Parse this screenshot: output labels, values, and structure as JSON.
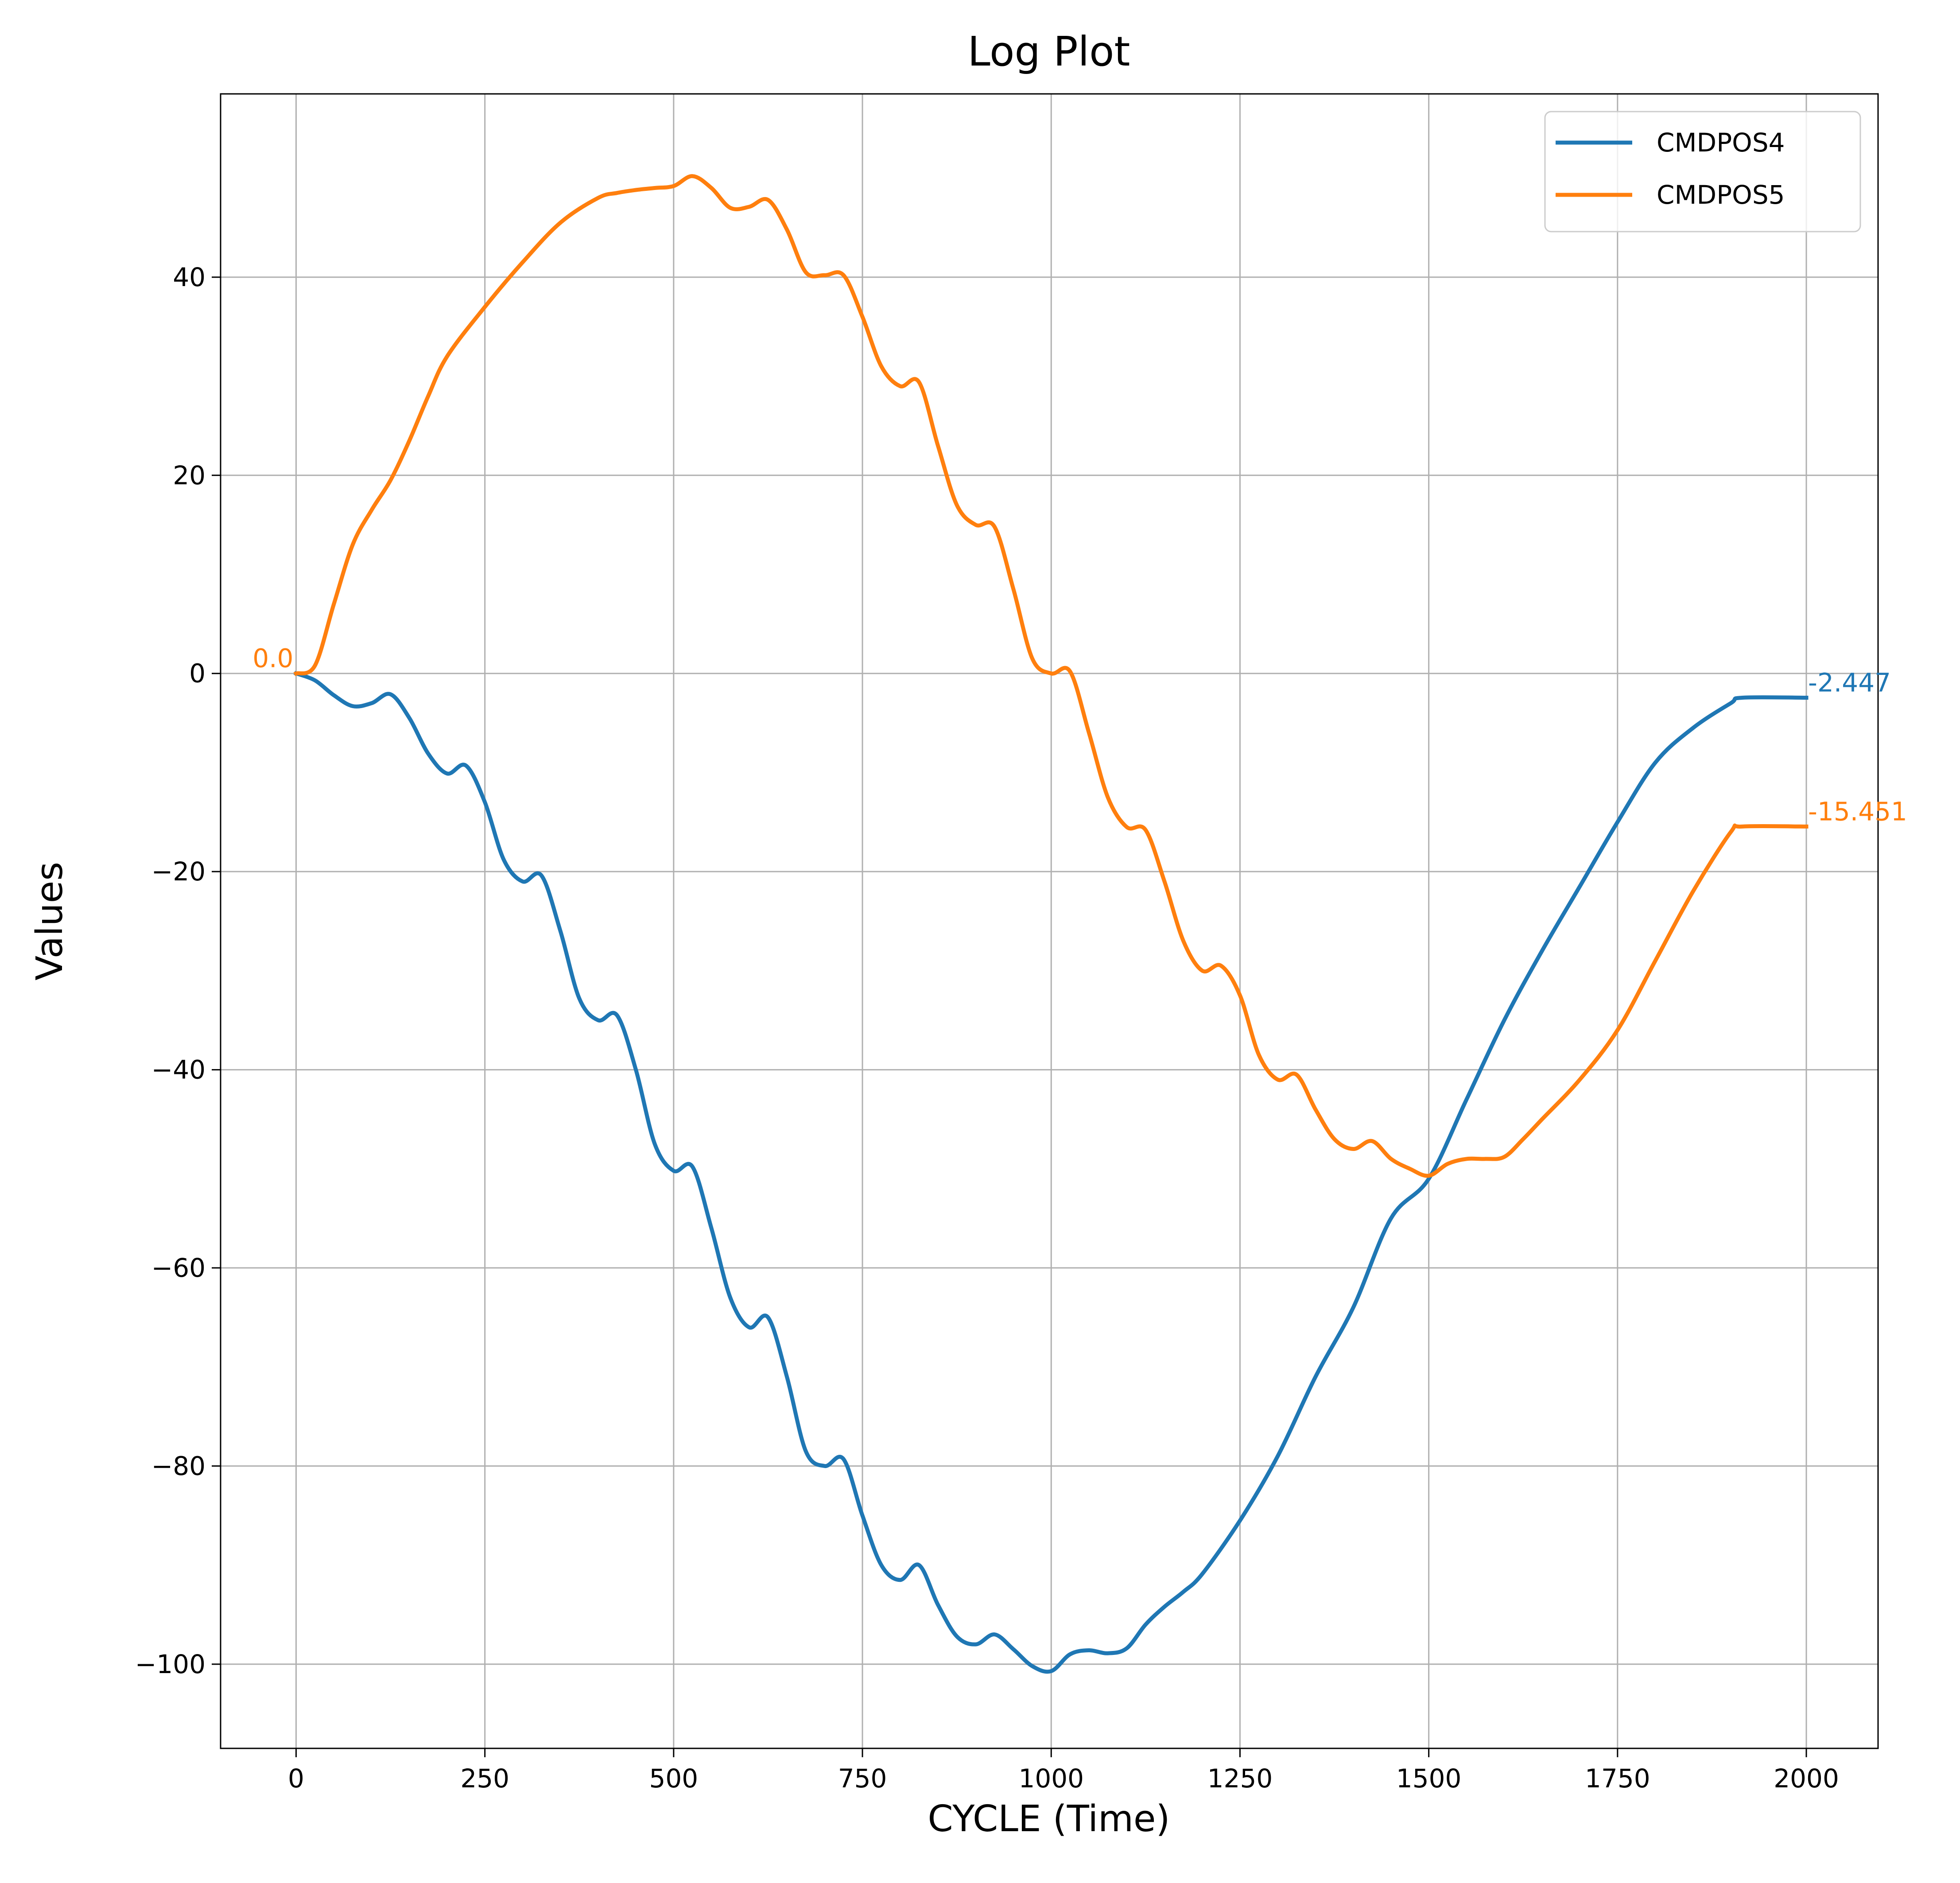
{
  "chart_data": {
    "type": "line",
    "title": "Log Plot",
    "xlabel": "CYCLE (Time)",
    "ylabel": "Values",
    "xlim": [
      -100,
      2095
    ],
    "ylim": [
      -108.5,
      58.5
    ],
    "xticks": [
      0,
      250,
      500,
      750,
      1000,
      1250,
      1500,
      1750,
      2000
    ],
    "yticks": [
      40,
      20,
      0,
      -20,
      -40,
      -60,
      -80,
      -100
    ],
    "xtick_labels": [
      "0",
      "250",
      "500",
      "750",
      "1000",
      "1250",
      "1500",
      "1750",
      "2000"
    ],
    "ytick_labels": [
      "40",
      "20",
      "0",
      "−20",
      "−40",
      "−60",
      "−80",
      "−100"
    ],
    "grid": true,
    "legend_position": "top-right",
    "series": [
      {
        "name": "CMDPOS4",
        "color": "#1f77b4",
        "x": [
          0,
          25,
          50,
          75,
          100,
          125,
          150,
          175,
          200,
          225,
          250,
          275,
          300,
          325,
          350,
          375,
          400,
          425,
          450,
          475,
          500,
          525,
          550,
          575,
          600,
          625,
          650,
          675,
          700,
          725,
          750,
          775,
          800,
          825,
          850,
          875,
          900,
          925,
          950,
          975,
          1000,
          1025,
          1050,
          1075,
          1100,
          1125,
          1150,
          1175,
          1200,
          1250,
          1300,
          1350,
          1400,
          1450,
          1500,
          1550,
          1600,
          1650,
          1700,
          1750,
          1800,
          1850,
          1900,
          1915,
          2000
        ],
        "y": [
          0,
          -0.7,
          -2.2,
          -3.3,
          -3.0,
          -2.1,
          -4.5,
          -8.1,
          -10.1,
          -9.3,
          -13.0,
          -18.8,
          -21.0,
          -20.4,
          -26.0,
          -32.8,
          -35.0,
          -34.5,
          -40.0,
          -47.5,
          -50.2,
          -49.8,
          -56.0,
          -63.0,
          -66.0,
          -65.0,
          -71.0,
          -78.5,
          -80.0,
          -79.3,
          -85.0,
          -90.0,
          -91.5,
          -90.0,
          -94.0,
          -97.2,
          -98.0,
          -97.0,
          -98.5,
          -100.2,
          -100.7,
          -99.0,
          -98.6,
          -98.9,
          -98.4,
          -96.0,
          -94.2,
          -92.7,
          -90.9,
          -85.5,
          -79.0,
          -71.0,
          -64.0,
          -55.0,
          -51.0,
          -43.0,
          -35.0,
          -28.0,
          -21.5,
          -15.0,
          -9.0,
          -5.5,
          -3.0,
          -2.447,
          -2.447
        ]
      },
      {
        "name": "CMDPOS5",
        "color": "#ff7f0e",
        "x": [
          0,
          25,
          50,
          75,
          100,
          125,
          150,
          175,
          200,
          250,
          300,
          350,
          400,
          425,
          450,
          475,
          500,
          525,
          550,
          575,
          600,
          625,
          650,
          675,
          700,
          725,
          750,
          775,
          800,
          825,
          850,
          875,
          900,
          925,
          950,
          975,
          1000,
          1025,
          1050,
          1075,
          1100,
          1125,
          1150,
          1175,
          1200,
          1225,
          1250,
          1275,
          1300,
          1325,
          1350,
          1375,
          1400,
          1425,
          1450,
          1475,
          1500,
          1525,
          1550,
          1575,
          1600,
          1625,
          1650,
          1700,
          1750,
          1800,
          1850,
          1900,
          1915,
          2000
        ],
        "y": [
          0,
          0.8,
          7.0,
          13.0,
          16.5,
          19.5,
          23.5,
          28.0,
          32.0,
          37.0,
          41.5,
          45.5,
          48.0,
          48.5,
          48.8,
          49.0,
          49.2,
          50.2,
          49.0,
          47.0,
          47.1,
          47.8,
          44.8,
          40.5,
          40.2,
          40.2,
          36.0,
          31.0,
          29.0,
          29.4,
          23.0,
          17.0,
          15.0,
          14.8,
          8.5,
          1.5,
          0,
          0.2,
          -6.0,
          -12.5,
          -15.5,
          -15.8,
          -21.0,
          -27.0,
          -30.0,
          -29.5,
          -32.5,
          -38.5,
          -41.0,
          -40.5,
          -44.0,
          -47.0,
          -48.0,
          -47.2,
          -49.0,
          -50.0,
          -50.7,
          -49.5,
          -49.0,
          -49.0,
          -48.8,
          -47.0,
          -45.0,
          -41.0,
          -36.0,
          -29.0,
          -22.0,
          -16.0,
          -15.451,
          -15.451
        ]
      }
    ],
    "annotations": [
      {
        "text": "0.0",
        "x": 0,
        "y": 0,
        "color": "#ff7f0e"
      },
      {
        "text": "-2.447",
        "x": 2000,
        "y": -2.447,
        "color": "#1f77b4"
      },
      {
        "text": "-15.451",
        "x": 2000,
        "y": -15.451,
        "color": "#ff7f0e"
      }
    ]
  }
}
